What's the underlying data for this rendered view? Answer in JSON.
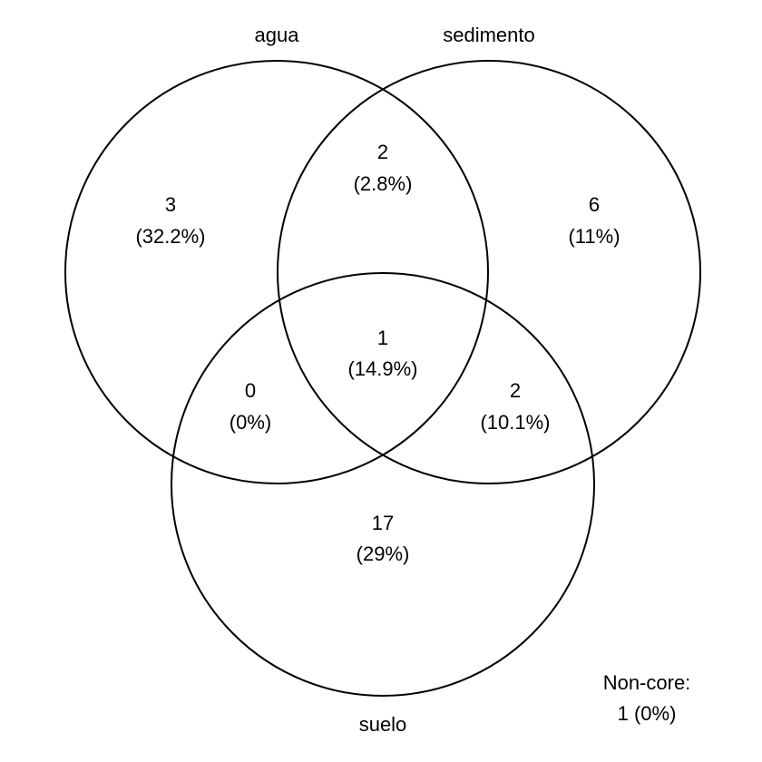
{
  "sets": [
    {
      "id": "agua",
      "label": "agua"
    },
    {
      "id": "sedimento",
      "label": "sedimento"
    },
    {
      "id": "suelo",
      "label": "suelo"
    }
  ],
  "regions": [
    {
      "id": "agua-only",
      "sets": [
        "agua"
      ],
      "count": "3",
      "percent": "(32.2%)"
    },
    {
      "id": "agua-sedimento",
      "sets": [
        "agua",
        "sedimento"
      ],
      "count": "2",
      "percent": "(2.8%)"
    },
    {
      "id": "sedimento-only",
      "sets": [
        "sedimento"
      ],
      "count": "6",
      "percent": "(11%)"
    },
    {
      "id": "agua-sedimento-suelo",
      "sets": [
        "agua",
        "sedimento",
        "suelo"
      ],
      "count": "1",
      "percent": "(14.9%)"
    },
    {
      "id": "agua-suelo",
      "sets": [
        "agua",
        "suelo"
      ],
      "count": "0",
      "percent": "(0%)"
    },
    {
      "id": "sedimento-suelo",
      "sets": [
        "sedimento",
        "suelo"
      ],
      "count": "2",
      "percent": "(10.1%)"
    },
    {
      "id": "suelo-only",
      "sets": [
        "suelo"
      ],
      "count": "17",
      "percent": "(29%)"
    }
  ],
  "noncore": {
    "label": "Non-core:",
    "value": "1 (0%)"
  },
  "colors": {
    "stroke": "#000000",
    "text": "#000000",
    "background": "#ffffff"
  }
}
